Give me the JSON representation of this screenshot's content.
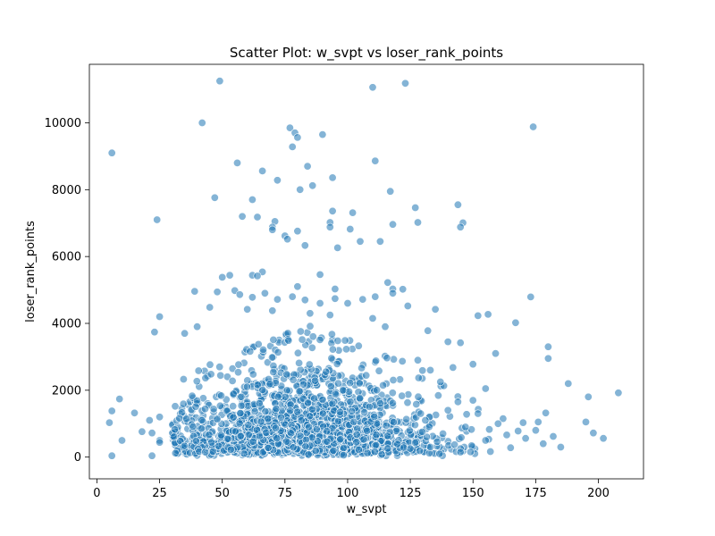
{
  "chart_data": {
    "type": "scatter",
    "title": "Scatter Plot: w_svpt vs loser_rank_points",
    "xlabel": "w_svpt",
    "ylabel": "loser_rank_points",
    "xlim": [
      -3,
      218
    ],
    "ylim": [
      -650,
      11750
    ],
    "xticks": [
      0,
      25,
      50,
      75,
      100,
      125,
      150,
      175,
      200
    ],
    "yticks": [
      0,
      2000,
      4000,
      6000,
      8000,
      10000
    ],
    "grid": false,
    "legend": "none",
    "color": "#1f77b4",
    "edge_color": "#ffffff",
    "alpha": 0.55,
    "outliers": [
      [
        49,
        11250
      ],
      [
        123,
        11180
      ],
      [
        110,
        11060
      ],
      [
        42,
        10000
      ],
      [
        77,
        9850
      ],
      [
        79,
        9700
      ],
      [
        90,
        9650
      ],
      [
        80,
        9560
      ],
      [
        78,
        9280
      ],
      [
        174,
        9880
      ],
      [
        6,
        9100
      ],
      [
        111,
        8860
      ],
      [
        56,
        8800
      ],
      [
        84,
        8700
      ],
      [
        66,
        8560
      ],
      [
        72,
        8280
      ],
      [
        94,
        8360
      ],
      [
        86,
        8120
      ],
      [
        81,
        8000
      ],
      [
        117,
        7950
      ],
      [
        47,
        7760
      ],
      [
        62,
        7700
      ],
      [
        127,
        7460
      ],
      [
        144,
        7550
      ],
      [
        58,
        7200
      ],
      [
        64,
        7180
      ],
      [
        24,
        7100
      ],
      [
        128,
        7020
      ],
      [
        146,
        7010
      ],
      [
        145,
        6880
      ],
      [
        71,
        7050
      ],
      [
        70,
        6880
      ],
      [
        70,
        6800
      ],
      [
        80,
        6760
      ],
      [
        75,
        6620
      ],
      [
        76,
        6520
      ],
      [
        83,
        6330
      ],
      [
        93,
        7020
      ],
      [
        94,
        7360
      ],
      [
        102,
        7310
      ],
      [
        93,
        6880
      ],
      [
        101,
        6820
      ],
      [
        105,
        6450
      ],
      [
        113,
        6450
      ],
      [
        96,
        6260
      ],
      [
        118,
        6960
      ]
    ],
    "mid_points": [
      [
        50,
        5380
      ],
      [
        53,
        5440
      ],
      [
        62,
        5440
      ],
      [
        66,
        5540
      ],
      [
        64,
        5420
      ],
      [
        89,
        5460
      ],
      [
        116,
        5220
      ],
      [
        122,
        5020
      ],
      [
        118,
        5030
      ],
      [
        95,
        5030
      ],
      [
        80,
        5100
      ],
      [
        48,
        4940
      ],
      [
        39,
        4960
      ],
      [
        55,
        4980
      ],
      [
        57,
        4860
      ],
      [
        62,
        4780
      ],
      [
        67,
        4900
      ],
      [
        72,
        4720
      ],
      [
        78,
        4800
      ],
      [
        83,
        4700
      ],
      [
        89,
        4600
      ],
      [
        95,
        4740
      ],
      [
        100,
        4600
      ],
      [
        106,
        4720
      ],
      [
        111,
        4800
      ],
      [
        118,
        4900
      ],
      [
        124,
        4520
      ],
      [
        135,
        4420
      ],
      [
        152,
        4230
      ],
      [
        156,
        4270
      ],
      [
        173,
        4790
      ],
      [
        167,
        4020
      ],
      [
        45,
        4480
      ],
      [
        60,
        4420
      ],
      [
        70,
        4380
      ],
      [
        85,
        4300
      ],
      [
        93,
        4250
      ],
      [
        110,
        4150
      ],
      [
        23,
        3740
      ],
      [
        25,
        4200
      ],
      [
        35,
        3700
      ],
      [
        40,
        3900
      ],
      [
        115,
        3900
      ],
      [
        132,
        3780
      ],
      [
        140,
        3450
      ],
      [
        145,
        3420
      ],
      [
        159,
        3100
      ],
      [
        180,
        3300
      ],
      [
        180,
        2950
      ],
      [
        188,
        2200
      ],
      [
        196,
        1800
      ],
      [
        208,
        1920
      ],
      [
        195,
        1050
      ],
      [
        198,
        720
      ],
      [
        202,
        560
      ],
      [
        185,
        300
      ],
      [
        9,
        1740
      ],
      [
        6,
        1380
      ],
      [
        15,
        1320
      ],
      [
        5,
        1030
      ],
      [
        10,
        500
      ],
      [
        6,
        40
      ],
      [
        18,
        760
      ],
      [
        21,
        1100
      ],
      [
        22,
        720
      ],
      [
        25,
        1200
      ],
      [
        25,
        500
      ],
      [
        22,
        40
      ],
      [
        25,
        440
      ],
      [
        170,
        1030
      ],
      [
        175,
        800
      ],
      [
        178,
        400
      ],
      [
        171,
        560
      ],
      [
        165,
        280
      ],
      [
        182,
        620
      ],
      [
        179,
        1320
      ],
      [
        176,
        1050
      ],
      [
        150,
        2780
      ],
      [
        155,
        2050
      ],
      [
        162,
        1150
      ],
      [
        168,
        780
      ],
      [
        142,
        2680
      ],
      [
        133,
        2600
      ],
      [
        137,
        2250
      ],
      [
        128,
        2900
      ],
      [
        144,
        1650
      ],
      [
        150,
        1700
      ],
      [
        140,
        1400
      ],
      [
        147,
        900
      ],
      [
        155,
        500
      ],
      [
        160,
        1000
      ],
      [
        131,
        1100
      ],
      [
        138,
        700
      ],
      [
        133,
        300
      ],
      [
        145,
        150
      ],
      [
        152,
        1300
      ]
    ]
  }
}
